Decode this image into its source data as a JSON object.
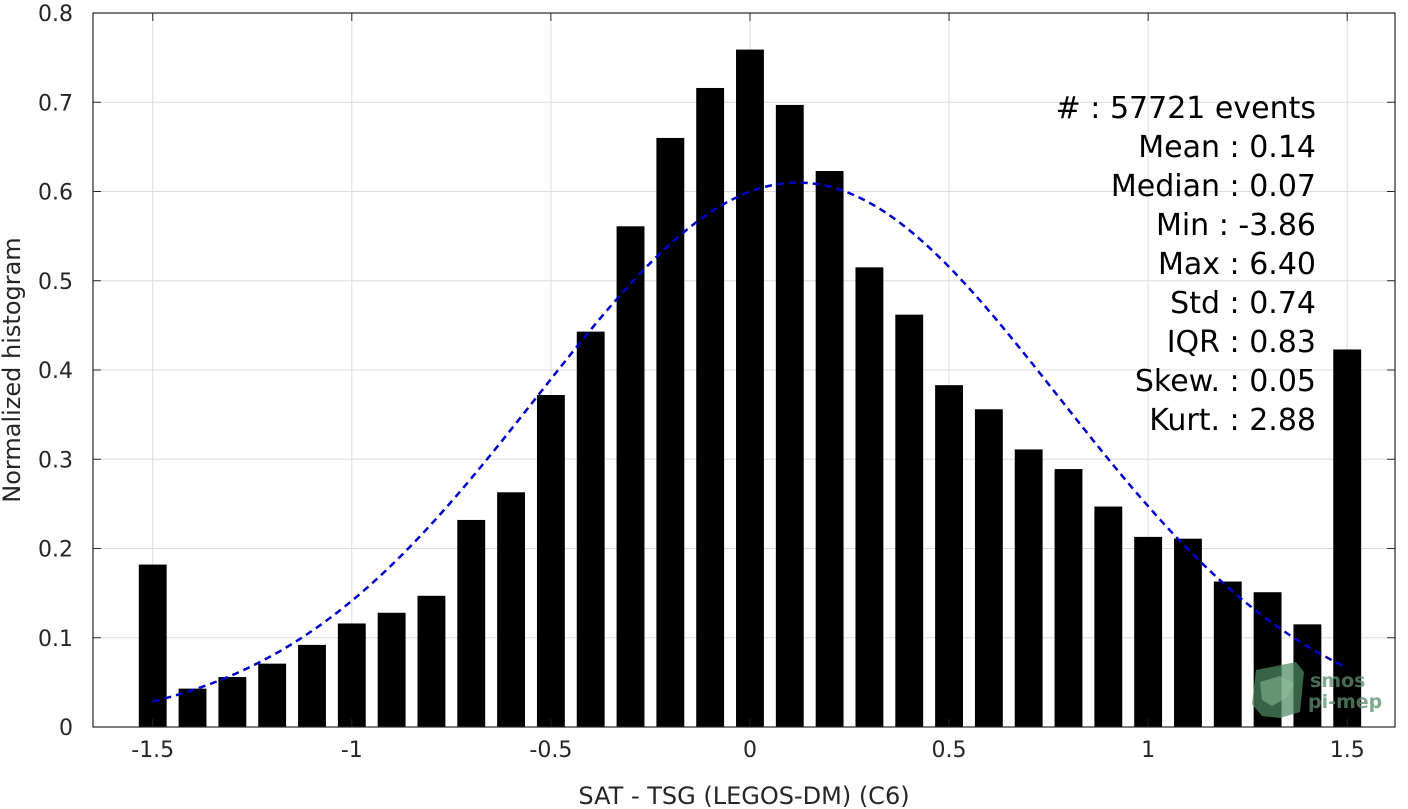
{
  "chart_data": {
    "type": "bar",
    "xlabel": "SAT - TSG (LEGOS-DM) (C6)",
    "ylabel": "Normalized histogram",
    "xlim": [
      -1.65,
      1.62
    ],
    "ylim": [
      0,
      0.8
    ],
    "grid": true,
    "x_ticks": [
      -1.5,
      -1,
      -0.5,
      0,
      0.5,
      1,
      1.5
    ],
    "x_tick_labels": [
      "-1.5",
      "-1",
      "-0.5",
      "0",
      "0.5",
      "1",
      "1.5"
    ],
    "y_ticks": [
      0,
      0.1,
      0.2,
      0.3,
      0.4,
      0.5,
      0.6,
      0.7,
      0.8
    ],
    "y_tick_labels": [
      "0",
      "0.1",
      "0.2",
      "0.3",
      "0.4",
      "0.5",
      "0.6",
      "0.7",
      "0.8"
    ],
    "bar_width": 0.07,
    "bars": {
      "x": [
        -1.5,
        -1.4,
        -1.3,
        -1.2,
        -1.1,
        -1.0,
        -0.9,
        -0.8,
        -0.7,
        -0.6,
        -0.5,
        -0.4,
        -0.3,
        -0.2,
        -0.1,
        0.0,
        0.1,
        0.2,
        0.3,
        0.4,
        0.5,
        0.6,
        0.7,
        0.8,
        0.9,
        1.0,
        1.1,
        1.2,
        1.3,
        1.4,
        1.5
      ],
      "values": [
        0.182,
        0.043,
        0.056,
        0.071,
        0.092,
        0.116,
        0.128,
        0.147,
        0.232,
        0.263,
        0.372,
        0.443,
        0.561,
        0.66,
        0.716,
        0.759,
        0.697,
        0.623,
        0.515,
        0.462,
        0.383,
        0.356,
        0.311,
        0.289,
        0.247,
        0.213,
        0.211,
        0.163,
        0.151,
        0.115,
        0.423
      ],
      "color": "#000000"
    },
    "fit_curve": {
      "style": "dashed",
      "color": "#0000cc",
      "mean": 0.12,
      "std": 0.655,
      "peak": 0.61,
      "x_range": [
        -1.5,
        1.5
      ]
    },
    "stats": [
      {
        "label": "#  : 57721 events"
      },
      {
        "label": "Mean : 0.14"
      },
      {
        "label": "Median : 0.07"
      },
      {
        "label": "Min : -3.86"
      },
      {
        "label": "Max : 6.40"
      },
      {
        "label": "Std : 0.74"
      },
      {
        "label": "IQR : 0.83"
      },
      {
        "label": "Skew. : 0.05"
      },
      {
        "label": "Kurt. : 2.88"
      }
    ]
  },
  "logo": {
    "line1": "smos",
    "line2": "pi-mep",
    "color": "#5f8f6f"
  }
}
